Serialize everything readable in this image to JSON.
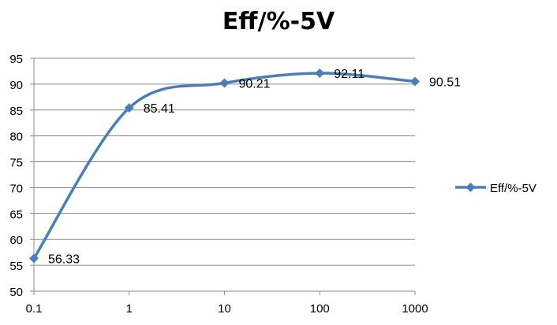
{
  "chart_data": {
    "type": "line",
    "title": "Eff/%-5V",
    "xlabel": "",
    "ylabel": "",
    "x_scale": "log",
    "categories": [
      "0.1",
      "1",
      "10",
      "100",
      "1000"
    ],
    "x": [
      0.1,
      1,
      10,
      100,
      1000
    ],
    "ylim": [
      50,
      95
    ],
    "yticks": [
      "50",
      "55",
      "60",
      "65",
      "70",
      "75",
      "80",
      "85",
      "90",
      "95"
    ],
    "grid": true,
    "legend_position": "right",
    "series": [
      {
        "name": "Eff/%-5V",
        "values": [
          56.33,
          85.41,
          90.21,
          92.11,
          90.51
        ],
        "labels": [
          "56.33",
          "85.41",
          "90.21",
          "92.11",
          "90.51"
        ],
        "color": "#4a7ebb",
        "marker": "diamond",
        "smooth": true
      }
    ]
  }
}
